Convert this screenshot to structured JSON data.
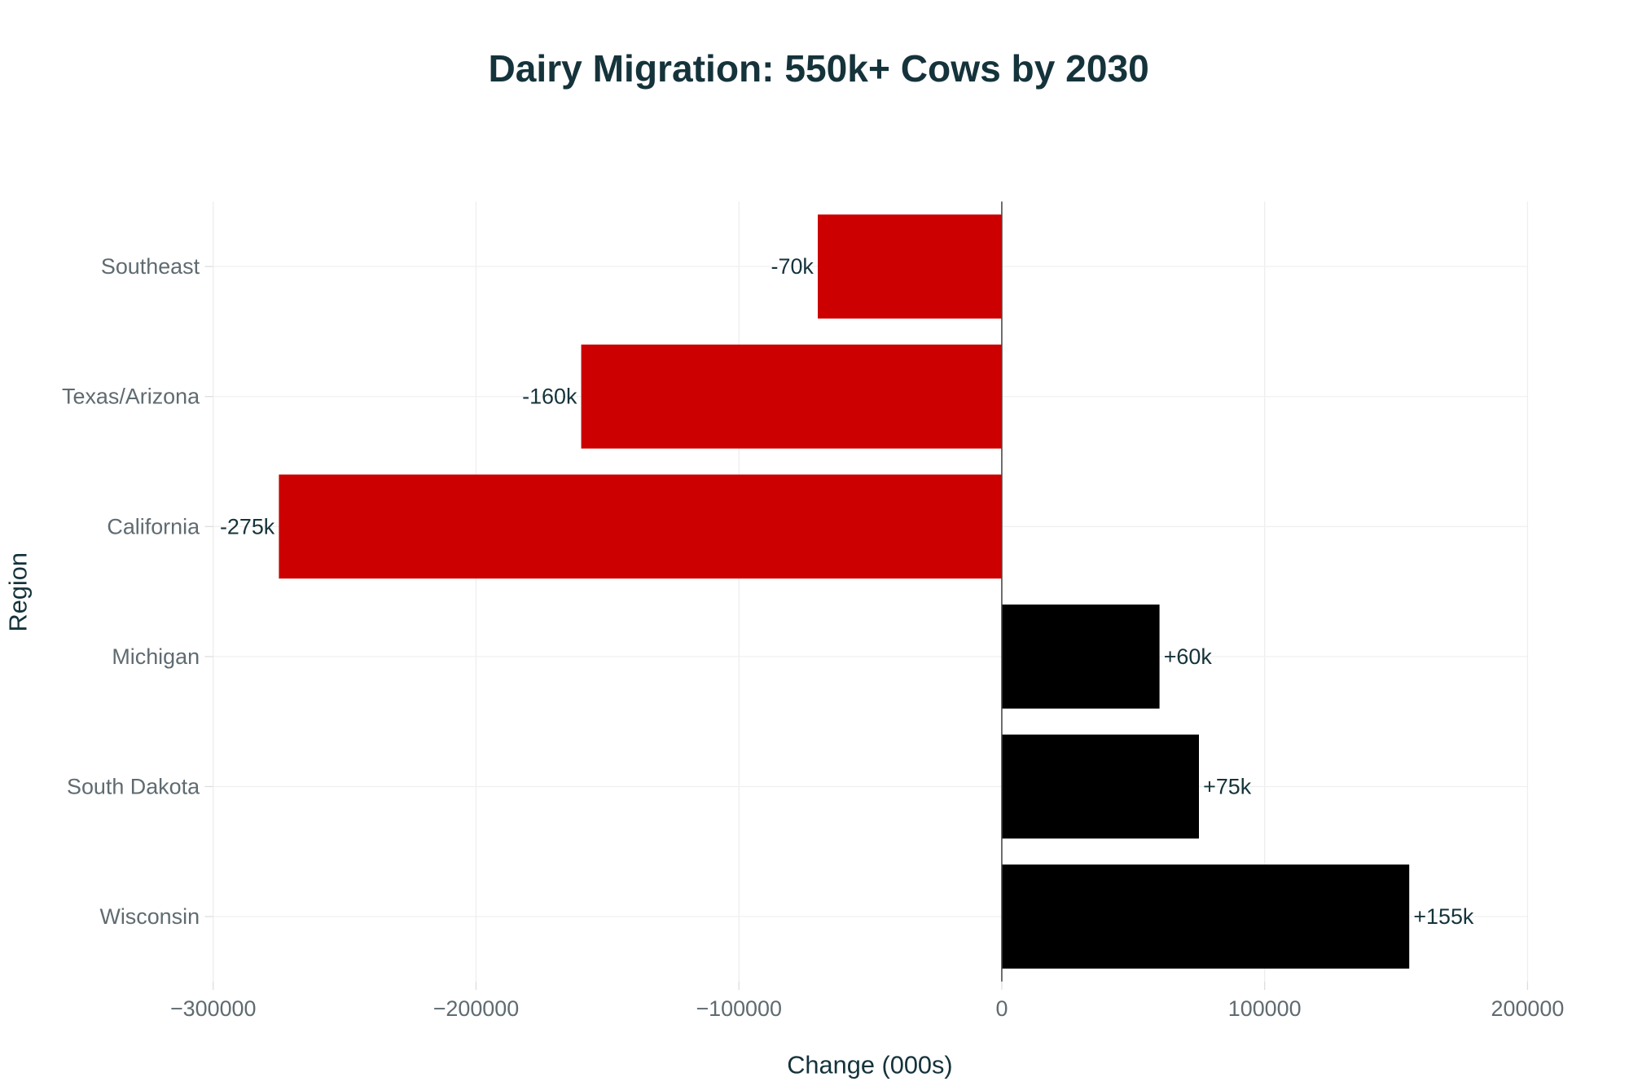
{
  "chart_data": {
    "type": "bar",
    "orientation": "horizontal",
    "title": "Dairy Migration: 550k+ Cows by 2030",
    "xlabel": "Change (000s)",
    "ylabel": "Region",
    "xlim": [
      -300000,
      200000
    ],
    "xticks": [
      -300000,
      -200000,
      -100000,
      0,
      100000,
      200000
    ],
    "xtick_labels": [
      "−300000",
      "−200000",
      "−100000",
      "0",
      "100000",
      "200000"
    ],
    "categories": [
      "Southeast",
      "Texas/Arizona",
      "California",
      "Michigan",
      "South Dakota",
      "Wisconsin"
    ],
    "values": [
      -70000,
      -160000,
      -275000,
      60000,
      75000,
      155000
    ],
    "data_labels": [
      "-70k",
      "-160k",
      "-275k",
      "+60k",
      "+75k",
      "+155k"
    ],
    "colors": {
      "negative": "#cc0000",
      "positive": "#000000"
    },
    "grid": true,
    "legend": "none"
  }
}
